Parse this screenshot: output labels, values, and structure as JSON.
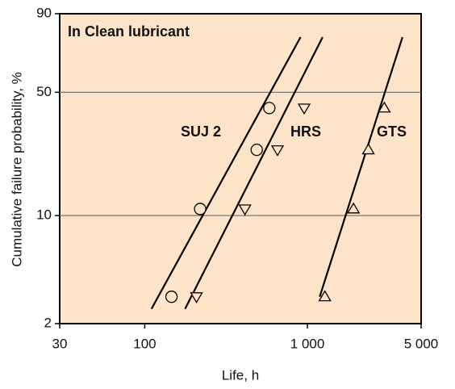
{
  "chart_data": {
    "type": "scatter",
    "title": "In Clean lubricant",
    "xlabel": "Life, h",
    "ylabel": "Cumulative failure probability, %",
    "xscale": "log",
    "yscale": "weibull",
    "xlim": [
      30,
      5000
    ],
    "ylim": [
      2,
      90
    ],
    "xticks": [
      30,
      100,
      {
        "value": 1000,
        "label": "1 000"
      },
      {
        "value": 5000,
        "label": "5 000"
      }
    ],
    "yticks": [
      2,
      10,
      50,
      90
    ],
    "grid_y_values": [
      10,
      50
    ],
    "background": "#fde4c8",
    "series": [
      {
        "name": "SUJ 2",
        "marker": "circle",
        "color": "#000000",
        "x": [
          146,
          219,
          488,
          583
        ],
        "values": [
          3,
          11,
          25,
          42
        ],
        "fit": {
          "x": [
            110,
            907
          ],
          "y": [
            2.5,
            80
          ]
        }
      },
      {
        "name": "HRS",
        "marker": "triangle-down",
        "color": "#000000",
        "x": [
          208,
          413,
          655,
          955
        ],
        "values": [
          3,
          11,
          25,
          42
        ],
        "fit": {
          "x": [
            177,
            1240
          ],
          "y": [
            2.5,
            80
          ]
        }
      },
      {
        "name": "GTS",
        "marker": "triangle-up",
        "color": "#000000",
        "x": [
          1280,
          1920,
          2370,
          2970
        ],
        "values": [
          3,
          11,
          25,
          42
        ],
        "fit": {
          "x": [
            1190,
            3840
          ],
          "y": [
            3,
            80
          ]
        }
      }
    ]
  }
}
